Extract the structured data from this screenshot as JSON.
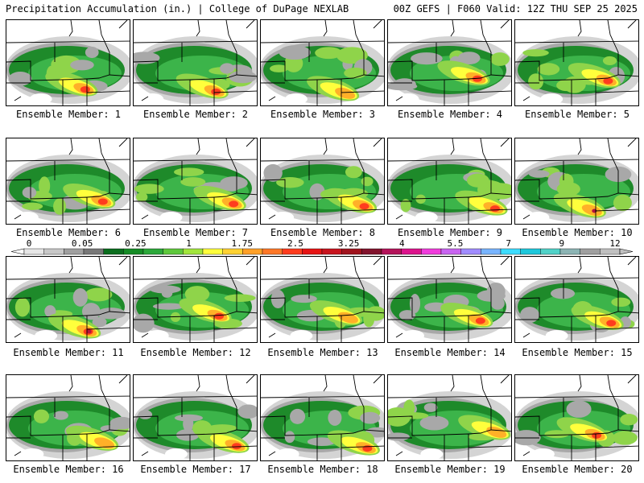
{
  "title_left": "Precipitation Accumulation (in.) | College of DuPage NEXLAB",
  "title_right": "00Z GEFS | F060 Valid: 12Z THU SEP 25 2025",
  "member_label_prefix": "Ensemble Member: ",
  "members": [
    1,
    2,
    3,
    4,
    5,
    6,
    7,
    8,
    9,
    10,
    11,
    12,
    13,
    14,
    15,
    16,
    17,
    18,
    19,
    20
  ],
  "legend": {
    "tick_labels": [
      "0",
      "0.05",
      "0.25",
      "1",
      "1.75",
      "2.5",
      "3.25",
      "4",
      "5.5",
      "7",
      "9",
      "12"
    ],
    "colors": [
      "#e6e6e6",
      "#c8c8c8",
      "#a0a0a0",
      "#787878",
      "#0b6e1e",
      "#168c26",
      "#2ca83a",
      "#5ec83c",
      "#a2e63c",
      "#ffff3c",
      "#ffd232",
      "#ffa028",
      "#ff7828",
      "#ff3c1e",
      "#e61414",
      "#c8141e",
      "#a0141e",
      "#82142d",
      "#b4145a",
      "#dc148c",
      "#f03cdc",
      "#c864f0",
      "#a08cff",
      "#78b4ff",
      "#3cdcff",
      "#1ec8dc",
      "#50d2c8",
      "#8cb4b4",
      "#a0a0a0",
      "#c0c0c0"
    ]
  },
  "map_colors": {
    "light_gray": "#d4d4d4",
    "gray": "#a8a8a8",
    "dark_green": "#1e8a2a",
    "mid_green": "#3cb44a",
    "light_green": "#8fd44a",
    "yellow": "#ffff3c",
    "orange": "#ffb028",
    "red": "#ff3c1e",
    "dark_red": "#b4143c"
  }
}
